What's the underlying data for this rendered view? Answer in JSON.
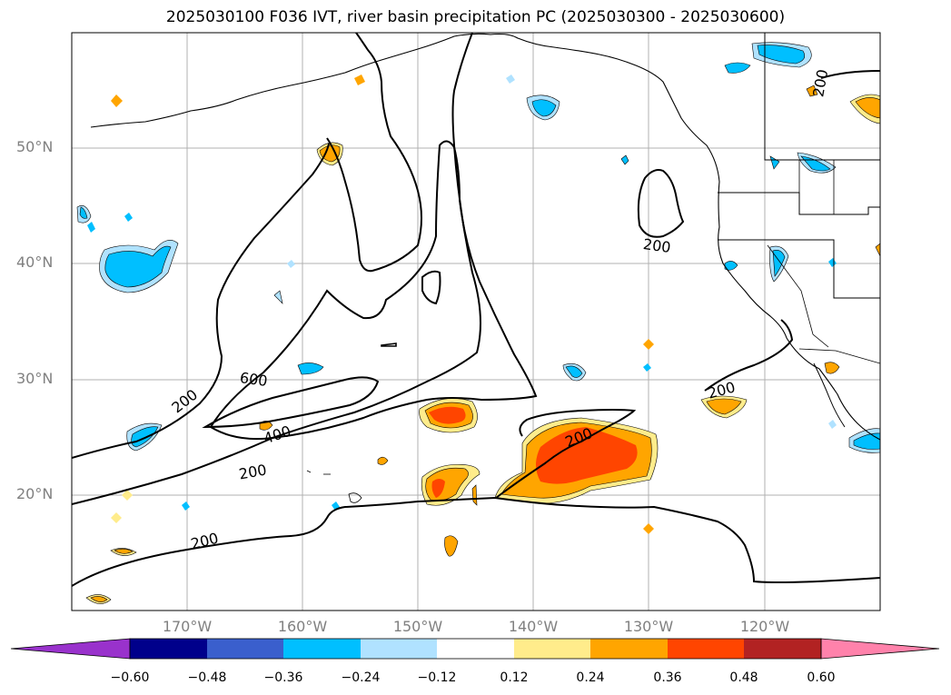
{
  "title": "2025030100 F036 IVT, river basin precipitation PC (2025030300 - 2025030600)",
  "map": {
    "lat_labels": [
      "50°N",
      "40°N",
      "30°N",
      "20°N"
    ],
    "lon_labels": [
      "170°W",
      "160°W",
      "150°W",
      "140°W",
      "130°W",
      "120°W"
    ],
    "contour_labels": [
      "200",
      "600",
      "400",
      "200",
      "200",
      "200",
      "200",
      "200",
      "200"
    ],
    "contour_units": "IVT"
  },
  "colorbar": {
    "colors": [
      "#9932cc",
      "#00008b",
      "#3a5fcd",
      "#00bfff",
      "#b0e2ff",
      "#ffffff",
      "#ffec8b",
      "#ffa500",
      "#ff4500",
      "#b22222",
      "#ff82ab"
    ],
    "ticks": [
      "−0.60",
      "−0.48",
      "−0.36",
      "−0.24",
      "−0.12",
      "0.12",
      "0.24",
      "0.36",
      "0.48",
      "0.60"
    ]
  }
}
